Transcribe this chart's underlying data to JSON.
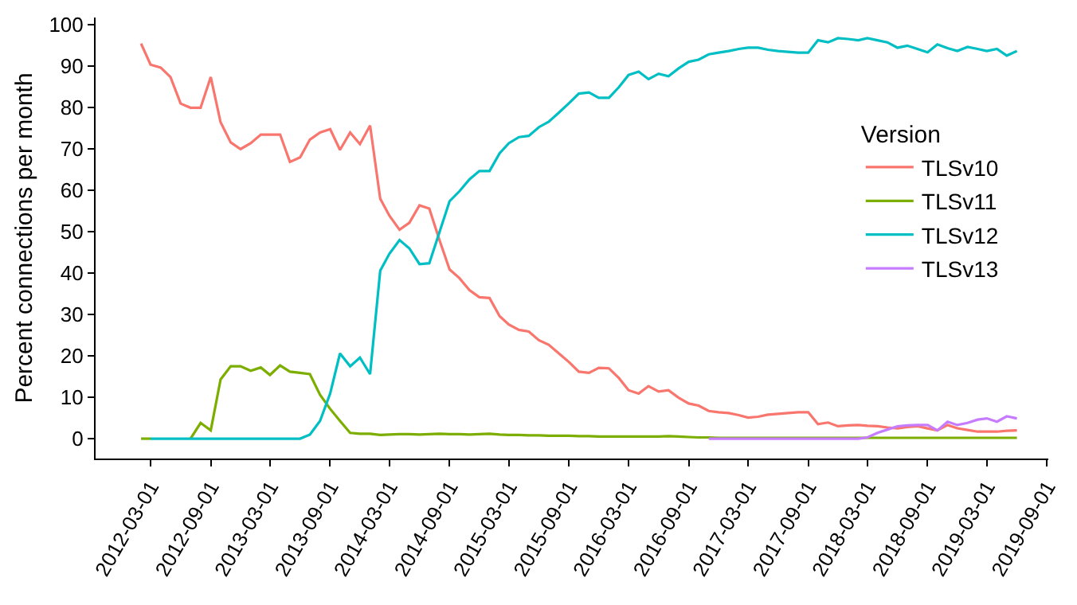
{
  "chart_data": {
    "type": "line",
    "ylabel": "Percent connections per month",
    "legend_title": "Version",
    "legend": "right",
    "marker": "none",
    "line_style": "solid",
    "x": [
      "2012-02",
      "2012-03",
      "2012-04",
      "2012-05",
      "2012-06",
      "2012-07",
      "2012-08",
      "2012-09",
      "2012-10",
      "2012-11",
      "2012-12",
      "2013-01",
      "2013-02",
      "2013-03",
      "2013-04",
      "2013-05",
      "2013-06",
      "2013-07",
      "2013-08",
      "2013-09",
      "2013-10",
      "2013-11",
      "2013-12",
      "2014-01",
      "2014-02",
      "2014-03",
      "2014-04",
      "2014-05",
      "2014-06",
      "2014-07",
      "2014-08",
      "2014-09",
      "2014-10",
      "2014-11",
      "2014-12",
      "2015-01",
      "2015-02",
      "2015-03",
      "2015-04",
      "2015-05",
      "2015-06",
      "2015-07",
      "2015-08",
      "2015-09",
      "2015-10",
      "2015-11",
      "2015-12",
      "2016-01",
      "2016-02",
      "2016-03",
      "2016-04",
      "2016-05",
      "2016-06",
      "2016-07",
      "2016-08",
      "2016-09",
      "2016-10",
      "2016-11",
      "2016-12",
      "2017-01",
      "2017-02",
      "2017-03",
      "2017-04",
      "2017-05",
      "2017-06",
      "2017-07",
      "2017-08",
      "2017-09",
      "2017-10",
      "2017-11",
      "2017-12",
      "2018-01",
      "2018-02",
      "2018-03",
      "2018-04",
      "2018-05",
      "2018-06",
      "2018-07",
      "2018-08",
      "2018-09",
      "2018-10",
      "2018-11",
      "2018-12",
      "2019-01",
      "2019-02",
      "2019-03",
      "2019-04",
      "2019-05",
      "2019-06"
    ],
    "series": [
      {
        "name": "TLSv10",
        "color": "#f8766d",
        "values": [
          95.5,
          90.4,
          89.7,
          87.4,
          81,
          80,
          80,
          87.4,
          76.5,
          71.6,
          70,
          71.4,
          73.5,
          73.5,
          73.5,
          66.9,
          68,
          72.3,
          74,
          74.8,
          69.8,
          74,
          71.2,
          75.7,
          58,
          53.9,
          50.5,
          52.2,
          56.4,
          55.6,
          48,
          40.9,
          38.8,
          35.9,
          34.2,
          34,
          29.6,
          27.6,
          26.3,
          25.9,
          23.8,
          22.7,
          20.6,
          18.5,
          16.2,
          15.9,
          17.1,
          17,
          14.6,
          11.7,
          10.9,
          12.7,
          11.4,
          11.7,
          9.9,
          8.5,
          8,
          6.7,
          6.4,
          6.2,
          5.7,
          5.1,
          5.3,
          5.8,
          6,
          6.2,
          6.4,
          6.4,
          3.5,
          3.9,
          3,
          3.2,
          3.3,
          3.1,
          3,
          2.7,
          2.5,
          2.8,
          3,
          2.5,
          2,
          3.3,
          2.5,
          2.1,
          1.7,
          1.7,
          1.7,
          1.9,
          2
        ]
      },
      {
        "name": "TLSv11",
        "color": "#7cae00",
        "values": [
          0,
          0,
          null,
          null,
          null,
          0,
          3.8,
          2,
          14.3,
          17.5,
          17.5,
          16.4,
          17.2,
          15.4,
          17.7,
          16.2,
          15.9,
          15.6,
          10.6,
          7.2,
          4.3,
          1.4,
          1.2,
          1.2,
          0.9,
          1,
          1.1,
          1.1,
          1,
          1.1,
          1.2,
          1.1,
          1.1,
          1,
          1.1,
          1.2,
          1,
          0.9,
          0.9,
          0.8,
          0.8,
          0.7,
          0.7,
          0.7,
          0.6,
          0.6,
          0.5,
          0.5,
          0.5,
          0.5,
          0.5,
          0.5,
          0.5,
          0.6,
          0.5,
          0.4,
          0.3,
          0.3,
          0.2,
          0.2,
          0.2,
          0.2,
          0.2,
          0.2,
          0.2,
          0.2,
          0.2,
          0.2,
          0.2,
          0.2,
          0.2,
          0.2,
          0.2,
          0.2,
          0.2,
          0.2,
          0.2,
          0.2,
          0.2,
          0.2,
          0.2,
          0.2,
          0.2,
          0.2,
          0.2,
          0.2,
          0.2,
          0.2,
          0.2
        ]
      },
      {
        "name": "TLSv12",
        "color": "#00bfc4",
        "values": [
          null,
          0,
          0,
          0,
          0,
          0,
          0,
          0,
          0,
          0,
          0,
          0,
          0,
          0,
          0,
          0,
          0,
          1,
          4.3,
          10.9,
          20.6,
          17.5,
          19.6,
          15.6,
          40.6,
          44.7,
          48,
          46,
          42.2,
          42.4,
          49.9,
          57.4,
          59.8,
          62.7,
          64.7,
          64.7,
          69,
          71.4,
          72.9,
          73.2,
          75.3,
          76.6,
          78.8,
          81.1,
          83.4,
          83.7,
          82.4,
          82.4,
          85,
          87.9,
          88.7,
          86.9,
          88.2,
          87.6,
          89.5,
          91.1,
          91.6,
          92.9,
          93.3,
          93.7,
          94.2,
          94.5,
          94.5,
          94,
          93.7,
          93.5,
          93.3,
          93.3,
          96.3,
          95.8,
          96.8,
          96.6,
          96.3,
          96.8,
          96.3,
          95.8,
          94.5,
          95,
          94.2,
          93.4,
          95.3,
          94.4,
          93.7,
          94.7,
          94.2,
          93.7,
          94.2,
          92.6,
          93.7
        ]
      },
      {
        "name": "TLSv13",
        "color": "#c77cff",
        "values": [
          null,
          null,
          null,
          null,
          null,
          null,
          null,
          null,
          null,
          null,
          null,
          null,
          null,
          null,
          null,
          null,
          null,
          null,
          null,
          null,
          null,
          null,
          null,
          null,
          null,
          null,
          null,
          null,
          null,
          null,
          null,
          null,
          null,
          null,
          null,
          null,
          null,
          null,
          null,
          null,
          null,
          null,
          null,
          null,
          null,
          null,
          null,
          null,
          null,
          null,
          null,
          null,
          null,
          null,
          null,
          null,
          null,
          0,
          0,
          0,
          0,
          0,
          0,
          0,
          0,
          0,
          0,
          0,
          0,
          0,
          0,
          0,
          0,
          0.3,
          1.4,
          2.2,
          3,
          3.2,
          3.3,
          3.3,
          2,
          4.1,
          3.3,
          3.8,
          4.6,
          4.9,
          4.1,
          5.4,
          4.9
        ]
      }
    ],
    "xlim": [
      "2011-09-15",
      "2019-09-05"
    ],
    "xticks": [
      {
        "value": "2012-03-01",
        "label": "2012-03-01"
      },
      {
        "value": "2012-09-01",
        "label": "2012-09-01"
      },
      {
        "value": "2013-03-01",
        "label": "2013-03-01"
      },
      {
        "value": "2013-09-01",
        "label": "2013-09-01"
      },
      {
        "value": "2014-03-01",
        "label": "2014-03-01"
      },
      {
        "value": "2014-09-01",
        "label": "2014-09-01"
      },
      {
        "value": "2015-03-01",
        "label": "2015-03-01"
      },
      {
        "value": "2015-09-01",
        "label": "2015-09-01"
      },
      {
        "value": "2016-03-01",
        "label": "2016-03-01"
      },
      {
        "value": "2016-09-01",
        "label": "2016-09-01"
      },
      {
        "value": "2017-03-01",
        "label": "2017-03-01"
      },
      {
        "value": "2017-09-01",
        "label": "2017-09-01"
      },
      {
        "value": "2018-03-01",
        "label": "2018-03-01"
      },
      {
        "value": "2018-09-01",
        "label": "2018-09-01"
      },
      {
        "value": "2019-03-01",
        "label": "2019-03-01"
      },
      {
        "value": "2019-09-01",
        "label": "2019-09-01"
      }
    ],
    "ylim": [
      -4.8,
      101.8
    ],
    "yticks": [
      0,
      10,
      20,
      30,
      40,
      50,
      60,
      70,
      80,
      90,
      100
    ]
  }
}
